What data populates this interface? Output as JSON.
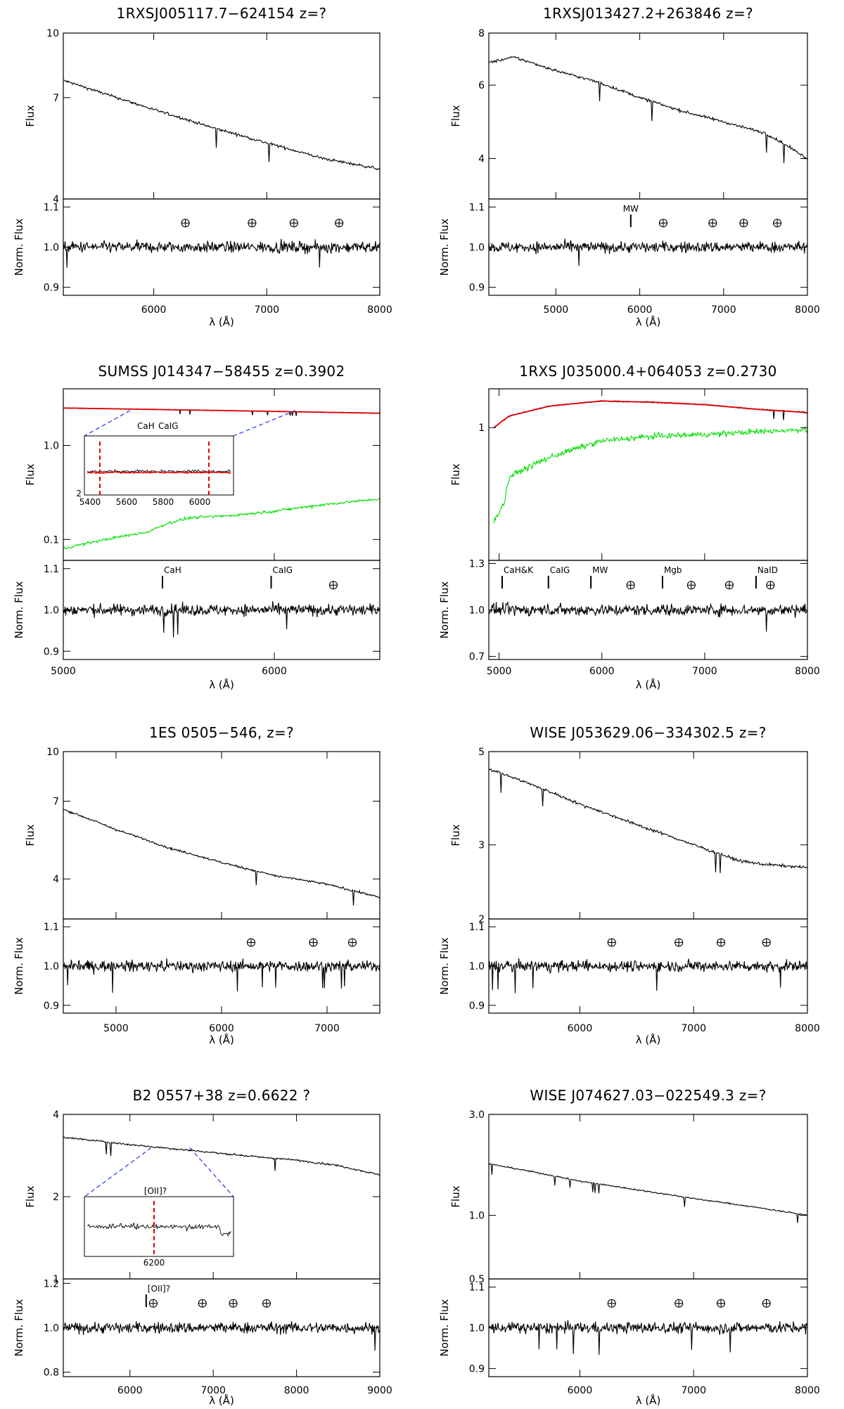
{
  "chart_data": [
    {
      "type": "line",
      "title": "1RXSJ005117.7−624154  z=?",
      "xlim": [
        5200,
        8000
      ],
      "xticks": [
        6000,
        7000,
        8000
      ],
      "xlabel": "λ (Å)",
      "top": {
        "ylabel": "Flux",
        "ylim": [
          4,
          10
        ],
        "log": true,
        "yticks": [
          "4",
          "7",
          "10"
        ],
        "yvals": [
          4,
          7,
          10
        ],
        "series": [
          {
            "color": "#000000",
            "x": [
              5200,
              5600,
              6000,
              6500,
              7000,
              7500,
              8000
            ],
            "y": [
              7.7,
              7.1,
              6.55,
              5.95,
              5.45,
              5.0,
              4.72
            ]
          }
        ]
      },
      "bottom": {
        "ylabel": "Norm. Flux",
        "ylim": [
          0.88,
          1.12
        ],
        "yticks": [
          "0.9",
          "1.0",
          "1.1"
        ],
        "yvals": [
          0.9,
          1.0,
          1.1
        ],
        "tellurics": [
          6280,
          6870,
          7240,
          7640
        ],
        "features": []
      }
    },
    {
      "type": "line",
      "title": "1RXSJ013427.2+263846  z=?",
      "xlim": [
        4200,
        8000
      ],
      "xticks": [
        5000,
        6000,
        7000,
        8000
      ],
      "xlabel": "λ (Å)",
      "top": {
        "ylabel": "Flux",
        "ylim": [
          3.2,
          8
        ],
        "log": true,
        "yticks": [
          "4",
          "6",
          "8"
        ],
        "yvals": [
          4,
          6,
          8
        ],
        "series": [
          {
            "color": "#000000",
            "x": [
              4200,
              4500,
              5000,
              5500,
              6000,
              6500,
              7000,
              7500,
              8000
            ],
            "y": [
              6.8,
              7.0,
              6.5,
              6.1,
              5.6,
              5.2,
              4.9,
              4.6,
              4.0
            ]
          }
        ]
      },
      "bottom": {
        "ylabel": "Norm. Flux",
        "ylim": [
          0.88,
          1.12
        ],
        "yticks": [
          "0.9",
          "1.0",
          "1.1"
        ],
        "yvals": [
          0.9,
          1.0,
          1.1
        ],
        "tellurics": [
          6280,
          6870,
          7240,
          7640
        ],
        "features": [
          {
            "label": "MW",
            "x": 5893
          }
        ]
      }
    },
    {
      "type": "line",
      "title": "SUMSS J014347−58455  z=0.3902",
      "xlim": [
        5000,
        6500
      ],
      "xticks": [
        5000,
        6000
      ],
      "xlabel": "λ (Å)",
      "top": {
        "ylabel": "Flux",
        "ylim": [
          0.06,
          4
        ],
        "log": true,
        "yticks": [
          "0.1",
          "1.0"
        ],
        "yvals": [
          0.1,
          1.0
        ],
        "series": [
          {
            "color": "#000000",
            "x": [
              5000,
              5500,
              6000,
              6500
            ],
            "y": [
              2.5,
              2.4,
              2.3,
              2.2
            ]
          },
          {
            "color": "#dd0000",
            "x": [
              5000,
              5500,
              6000,
              6500
            ],
            "y": [
              2.5,
              2.4,
              2.3,
              2.2
            ]
          },
          {
            "color": "#00dd00",
            "x": [
              5000,
              5200,
              5400,
              5500,
              5600,
              5800,
              6000,
              6200,
              6500
            ],
            "y": [
              0.08,
              0.1,
              0.12,
              0.15,
              0.17,
              0.18,
              0.2,
              0.23,
              0.27
            ]
          }
        ],
        "inset": {
          "labels": [
            "CaH",
            "CaIG"
          ],
          "xticks": [
            "5400",
            "5600",
            "5800",
            "6000"
          ],
          "ytick": "2"
        }
      },
      "bottom": {
        "ylabel": "Norm. Flux",
        "ylim": [
          0.88,
          1.12
        ],
        "yticks": [
          "0.9",
          "1.0",
          "1.1"
        ],
        "yvals": [
          0.9,
          1.0,
          1.1
        ],
        "tellurics": [
          6280
        ],
        "features": [
          {
            "label": "CaH",
            "x": 5470
          },
          {
            "label": "CaIG",
            "x": 5985
          }
        ]
      }
    },
    {
      "type": "line",
      "title": "1RXS J035000.4+064053  z=0.2730",
      "xlim": [
        4900,
        8000
      ],
      "xticks": [
        5000,
        6000,
        7000,
        8000
      ],
      "xlabel": "λ (Å)",
      "top": {
        "ylabel": "Flux",
        "ylim": [
          0.2,
          1.6
        ],
        "log": true,
        "yticks": [
          "1"
        ],
        "yvals": [
          1
        ],
        "series": [
          {
            "color": "#000000",
            "x": [
              4950,
              5100,
              5500,
              6000,
              6500,
              7000,
              7500,
              8000
            ],
            "y": [
              1.0,
              1.15,
              1.3,
              1.38,
              1.36,
              1.32,
              1.25,
              1.2
            ]
          },
          {
            "color": "#dd0000",
            "x": [
              4950,
              5100,
              5500,
              6000,
              6500,
              7000,
              7500,
              8000
            ],
            "y": [
              1.0,
              1.15,
              1.3,
              1.38,
              1.36,
              1.32,
              1.25,
              1.2
            ]
          },
          {
            "color": "#00dd00",
            "x": [
              4950,
              5050,
              5100,
              5500,
              6000,
              6500,
              7000,
              7500,
              8000
            ],
            "y": [
              0.32,
              0.4,
              0.55,
              0.7,
              0.85,
              0.9,
              0.92,
              0.95,
              0.98
            ]
          }
        ]
      },
      "bottom": {
        "ylabel": "Norm. Flux",
        "ylim": [
          0.68,
          1.32
        ],
        "yticks": [
          "0.7",
          "1.0",
          "1.3"
        ],
        "yvals": [
          0.7,
          1.0,
          1.3
        ],
        "tellurics": [
          6280,
          6870,
          7240,
          7640
        ],
        "features": [
          {
            "label": "CaH&K",
            "x": 5030
          },
          {
            "label": "CaIG",
            "x": 5480
          },
          {
            "label": "MW",
            "x": 5893
          },
          {
            "label": "Mgb",
            "x": 6590
          },
          {
            "label": "NaID",
            "x": 7500
          }
        ]
      }
    },
    {
      "type": "line",
      "title": "1ES 0505−546, z=?",
      "xlim": [
        4500,
        7500
      ],
      "xticks": [
        5000,
        6000,
        7000
      ],
      "xlabel": "λ (Å)",
      "top": {
        "ylabel": "Flux",
        "ylim": [
          3.0,
          10
        ],
        "log": true,
        "yticks": [
          "4",
          "7",
          "10"
        ],
        "yvals": [
          4,
          7,
          10
        ],
        "series": [
          {
            "color": "#000000",
            "x": [
              4500,
              5000,
              5500,
              6000,
              6500,
              7000,
              7500
            ],
            "y": [
              6.6,
              5.7,
              5.0,
              4.5,
              4.1,
              3.85,
              3.5
            ]
          }
        ]
      },
      "bottom": {
        "ylabel": "Norm. Flux",
        "ylim": [
          0.88,
          1.12
        ],
        "yticks": [
          "0.9",
          "1.0",
          "1.1"
        ],
        "yvals": [
          0.9,
          1.0,
          1.1
        ],
        "tellurics": [
          6280,
          6870,
          7240
        ],
        "features": []
      }
    },
    {
      "type": "line",
      "title": "WISE J053629.06−334302.5  z=?",
      "xlim": [
        5200,
        8000
      ],
      "xticks": [
        6000,
        7000,
        8000
      ],
      "xlabel": "λ (Å)",
      "top": {
        "ylabel": "Flux",
        "ylim": [
          2,
          5
        ],
        "log": true,
        "yticks": [
          "2",
          "3",
          "5"
        ],
        "yvals": [
          2,
          3,
          5
        ],
        "series": [
          {
            "color": "#000000",
            "x": [
              5200,
              5600,
              6000,
              6500,
              7000,
              7400,
              7600,
              8000
            ],
            "y": [
              4.55,
              4.15,
              3.75,
              3.35,
              3.0,
              2.75,
              2.7,
              2.65
            ]
          }
        ]
      },
      "bottom": {
        "ylabel": "Norm. Flux",
        "ylim": [
          0.88,
          1.12
        ],
        "yticks": [
          "0.9",
          "1.0",
          "1.1"
        ],
        "yvals": [
          0.9,
          1.0,
          1.1
        ],
        "tellurics": [
          6280,
          6870,
          7240,
          7640
        ],
        "features": []
      }
    },
    {
      "type": "line",
      "title": "B2 0557+38  z=0.6622  ?",
      "xlim": [
        5200,
        9000
      ],
      "xticks": [
        6000,
        7000,
        8000,
        9000
      ],
      "xlabel": "λ (Å)",
      "top": {
        "ylabel": "Flux",
        "ylim": [
          1,
          4
        ],
        "log": true,
        "yticks": [
          "1",
          "2",
          "4"
        ],
        "yvals": [
          1,
          2,
          4
        ],
        "series": [
          {
            "color": "#000000",
            "x": [
              5200,
              5600,
              6000,
              6500,
              7000,
              7500,
              8000,
              8500,
              9000
            ],
            "y": [
              3.3,
              3.2,
              3.1,
              3.0,
              2.9,
              2.8,
              2.72,
              2.6,
              2.4
            ]
          }
        ],
        "inset": {
          "labels": [
            "[OII]?"
          ],
          "xticks": [
            "6200"
          ]
        }
      },
      "bottom": {
        "ylabel": "Norm. Flux",
        "ylim": [
          0.78,
          1.22
        ],
        "yticks": [
          "0.8",
          "1.0",
          "1.2"
        ],
        "yvals": [
          0.8,
          1.0,
          1.2
        ],
        "tellurics": [
          6280,
          6870,
          7240,
          7640
        ],
        "features": [
          {
            "label": "[OII]?",
            "x": 6195
          }
        ]
      }
    },
    {
      "type": "line",
      "title": "WISE J074627.03−022549.3  z=?",
      "xlim": [
        5200,
        8000
      ],
      "xticks": [
        6000,
        7000,
        8000
      ],
      "xlabel": "λ (Å)",
      "top": {
        "ylabel": "Flux",
        "ylim": [
          0.5,
          3.0
        ],
        "log": true,
        "yticks": [
          "0.5",
          "1.0",
          "3.0"
        ],
        "yvals": [
          0.5,
          1.0,
          3.0
        ],
        "series": [
          {
            "color": "#000000",
            "x": [
              5200,
              5600,
              6000,
              6500,
              7000,
              7500,
              8000
            ],
            "y": [
              1.75,
              1.6,
              1.45,
              1.32,
              1.2,
              1.1,
              1.0
            ]
          }
        ]
      },
      "bottom": {
        "ylabel": "Norm. Flux",
        "ylim": [
          0.88,
          1.12
        ],
        "yticks": [
          "0.9",
          "1.0",
          "1.1"
        ],
        "yvals": [
          0.9,
          1.0,
          1.1
        ],
        "tellurics": [
          6280,
          6870,
          7240,
          7640
        ],
        "features": []
      }
    }
  ]
}
